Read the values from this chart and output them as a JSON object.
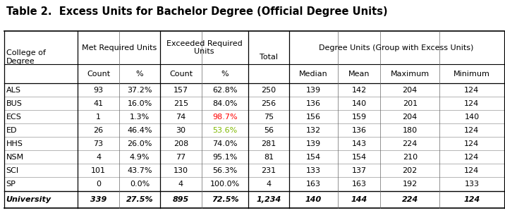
{
  "title": "Table 2.  Excess Units for Bachelor Degree (Official Degree Units)",
  "rows": [
    [
      "ALS",
      "93",
      "37.2%",
      "157",
      "62.8%",
      "250",
      "139",
      "142",
      "204",
      "124"
    ],
    [
      "BUS",
      "41",
      "16.0%",
      "215",
      "84.0%",
      "256",
      "136",
      "140",
      "201",
      "124"
    ],
    [
      "ECS",
      "1",
      "1.3%",
      "74",
      "98.7%",
      "75",
      "156",
      "159",
      "204",
      "140"
    ],
    [
      "ED",
      "26",
      "46.4%",
      "30",
      "53.6%",
      "56",
      "132",
      "136",
      "180",
      "124"
    ],
    [
      "HHS",
      "73",
      "26.0%",
      "208",
      "74.0%",
      "281",
      "139",
      "143",
      "224",
      "124"
    ],
    [
      "NSM",
      "4",
      "4.9%",
      "77",
      "95.1%",
      "81",
      "154",
      "154",
      "210",
      "124"
    ],
    [
      "SCI",
      "101",
      "43.7%",
      "130",
      "56.3%",
      "231",
      "133",
      "137",
      "202",
      "124"
    ],
    [
      "SP",
      "0",
      "0.0%",
      "4",
      "100.0%",
      "4",
      "163",
      "163",
      "192",
      "133"
    ]
  ],
  "footer": [
    "University",
    "339",
    "27.5%",
    "895",
    "72.5%",
    "1,234",
    "140",
    "144",
    "224",
    "124"
  ],
  "special_red": [
    2,
    4
  ],
  "special_green": [
    3,
    4
  ],
  "special_red_color": "#ff0000",
  "special_green_color": "#7fb900",
  "bg_color": "#ffffff",
  "title_fontsize": 10.5,
  "cell_fontsize": 8.0,
  "header_fontsize": 8.0
}
